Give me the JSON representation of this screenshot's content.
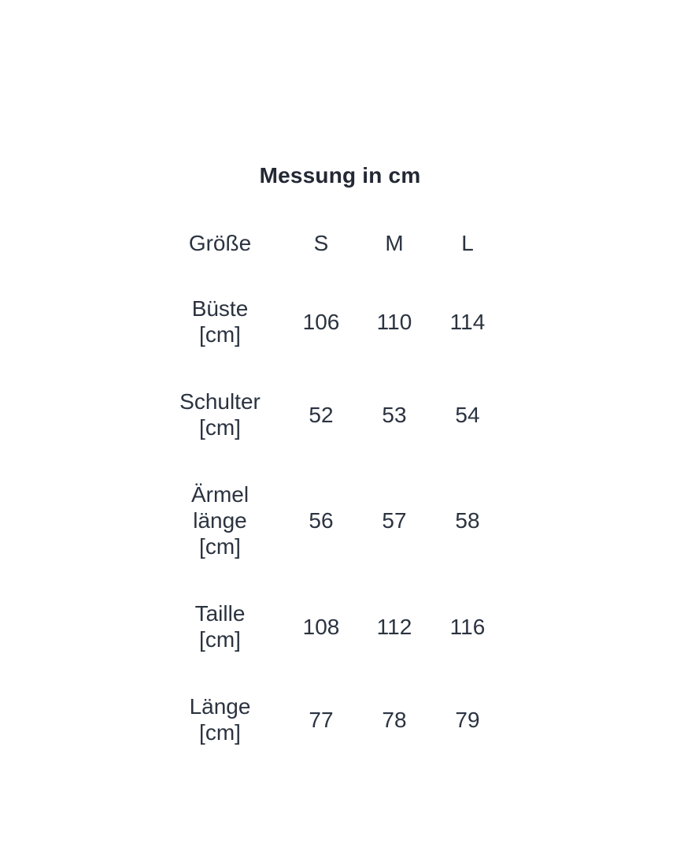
{
  "page": {
    "background_color": "#ffffff",
    "text_color": "#2b3340"
  },
  "chart_data": {
    "type": "table",
    "title": "Messung in cm",
    "unit": "cm",
    "columns": [
      "Größe",
      "S",
      "M",
      "L"
    ],
    "rows": [
      {
        "label": "Büste [cm]",
        "label_lines": [
          "Büste",
          "[cm]"
        ],
        "values": [
          "106",
          "110",
          "114"
        ]
      },
      {
        "label": "Schulter [cm]",
        "label_lines": [
          "Schulter",
          "[cm]"
        ],
        "values": [
          "52",
          "53",
          "54"
        ]
      },
      {
        "label": "Ärmel länge [cm]",
        "label_lines": [
          "Ärmel",
          "länge",
          "[cm]"
        ],
        "values": [
          "56",
          "57",
          "58"
        ]
      },
      {
        "label": "Taille [cm]",
        "label_lines": [
          "Taille",
          "[cm]"
        ],
        "values": [
          "108",
          "112",
          "116"
        ]
      },
      {
        "label": "Länge [cm]",
        "label_lines": [
          "Länge",
          "[cm]"
        ],
        "values": [
          "77",
          "78",
          "79"
        ]
      }
    ]
  }
}
